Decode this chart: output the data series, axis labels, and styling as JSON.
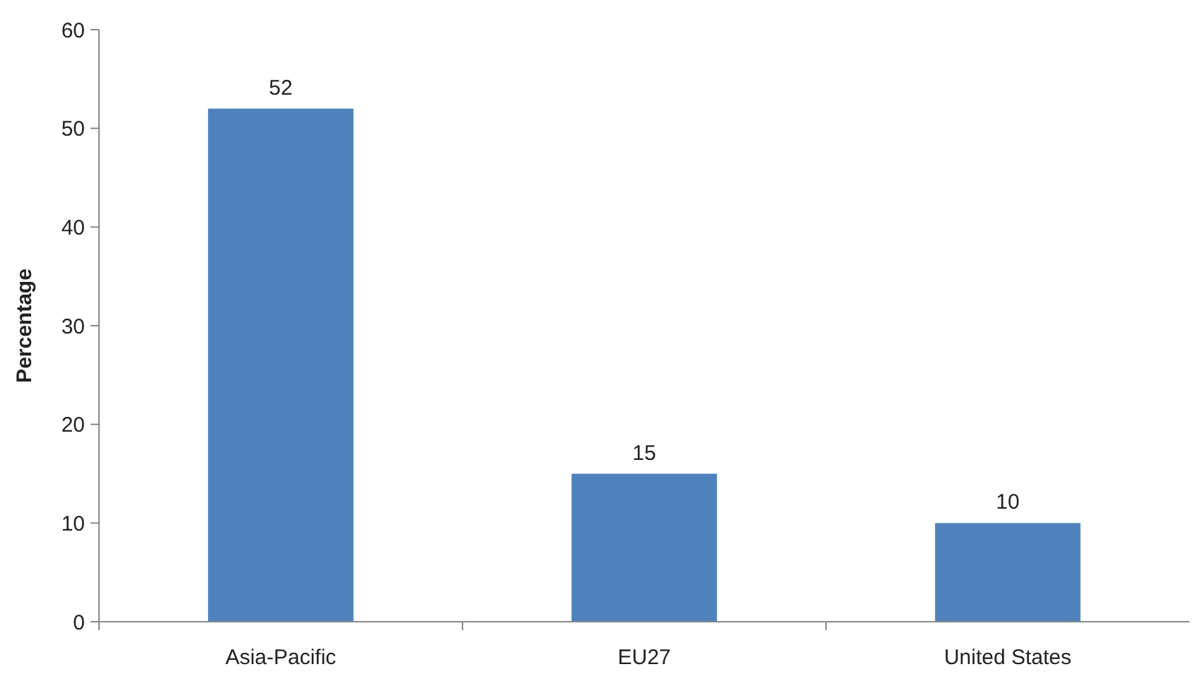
{
  "chart_data": {
    "type": "bar",
    "ylabel": "Percentage",
    "categories": [
      "Asia-Pacific",
      "EU27",
      "United States"
    ],
    "values": [
      52,
      15,
      10
    ],
    "color": "#4f81bd",
    "ylim": [
      0,
      60
    ],
    "yticks": [
      0,
      10,
      20,
      30,
      40,
      50,
      60
    ],
    "data_labels": true,
    "grid": false
  }
}
